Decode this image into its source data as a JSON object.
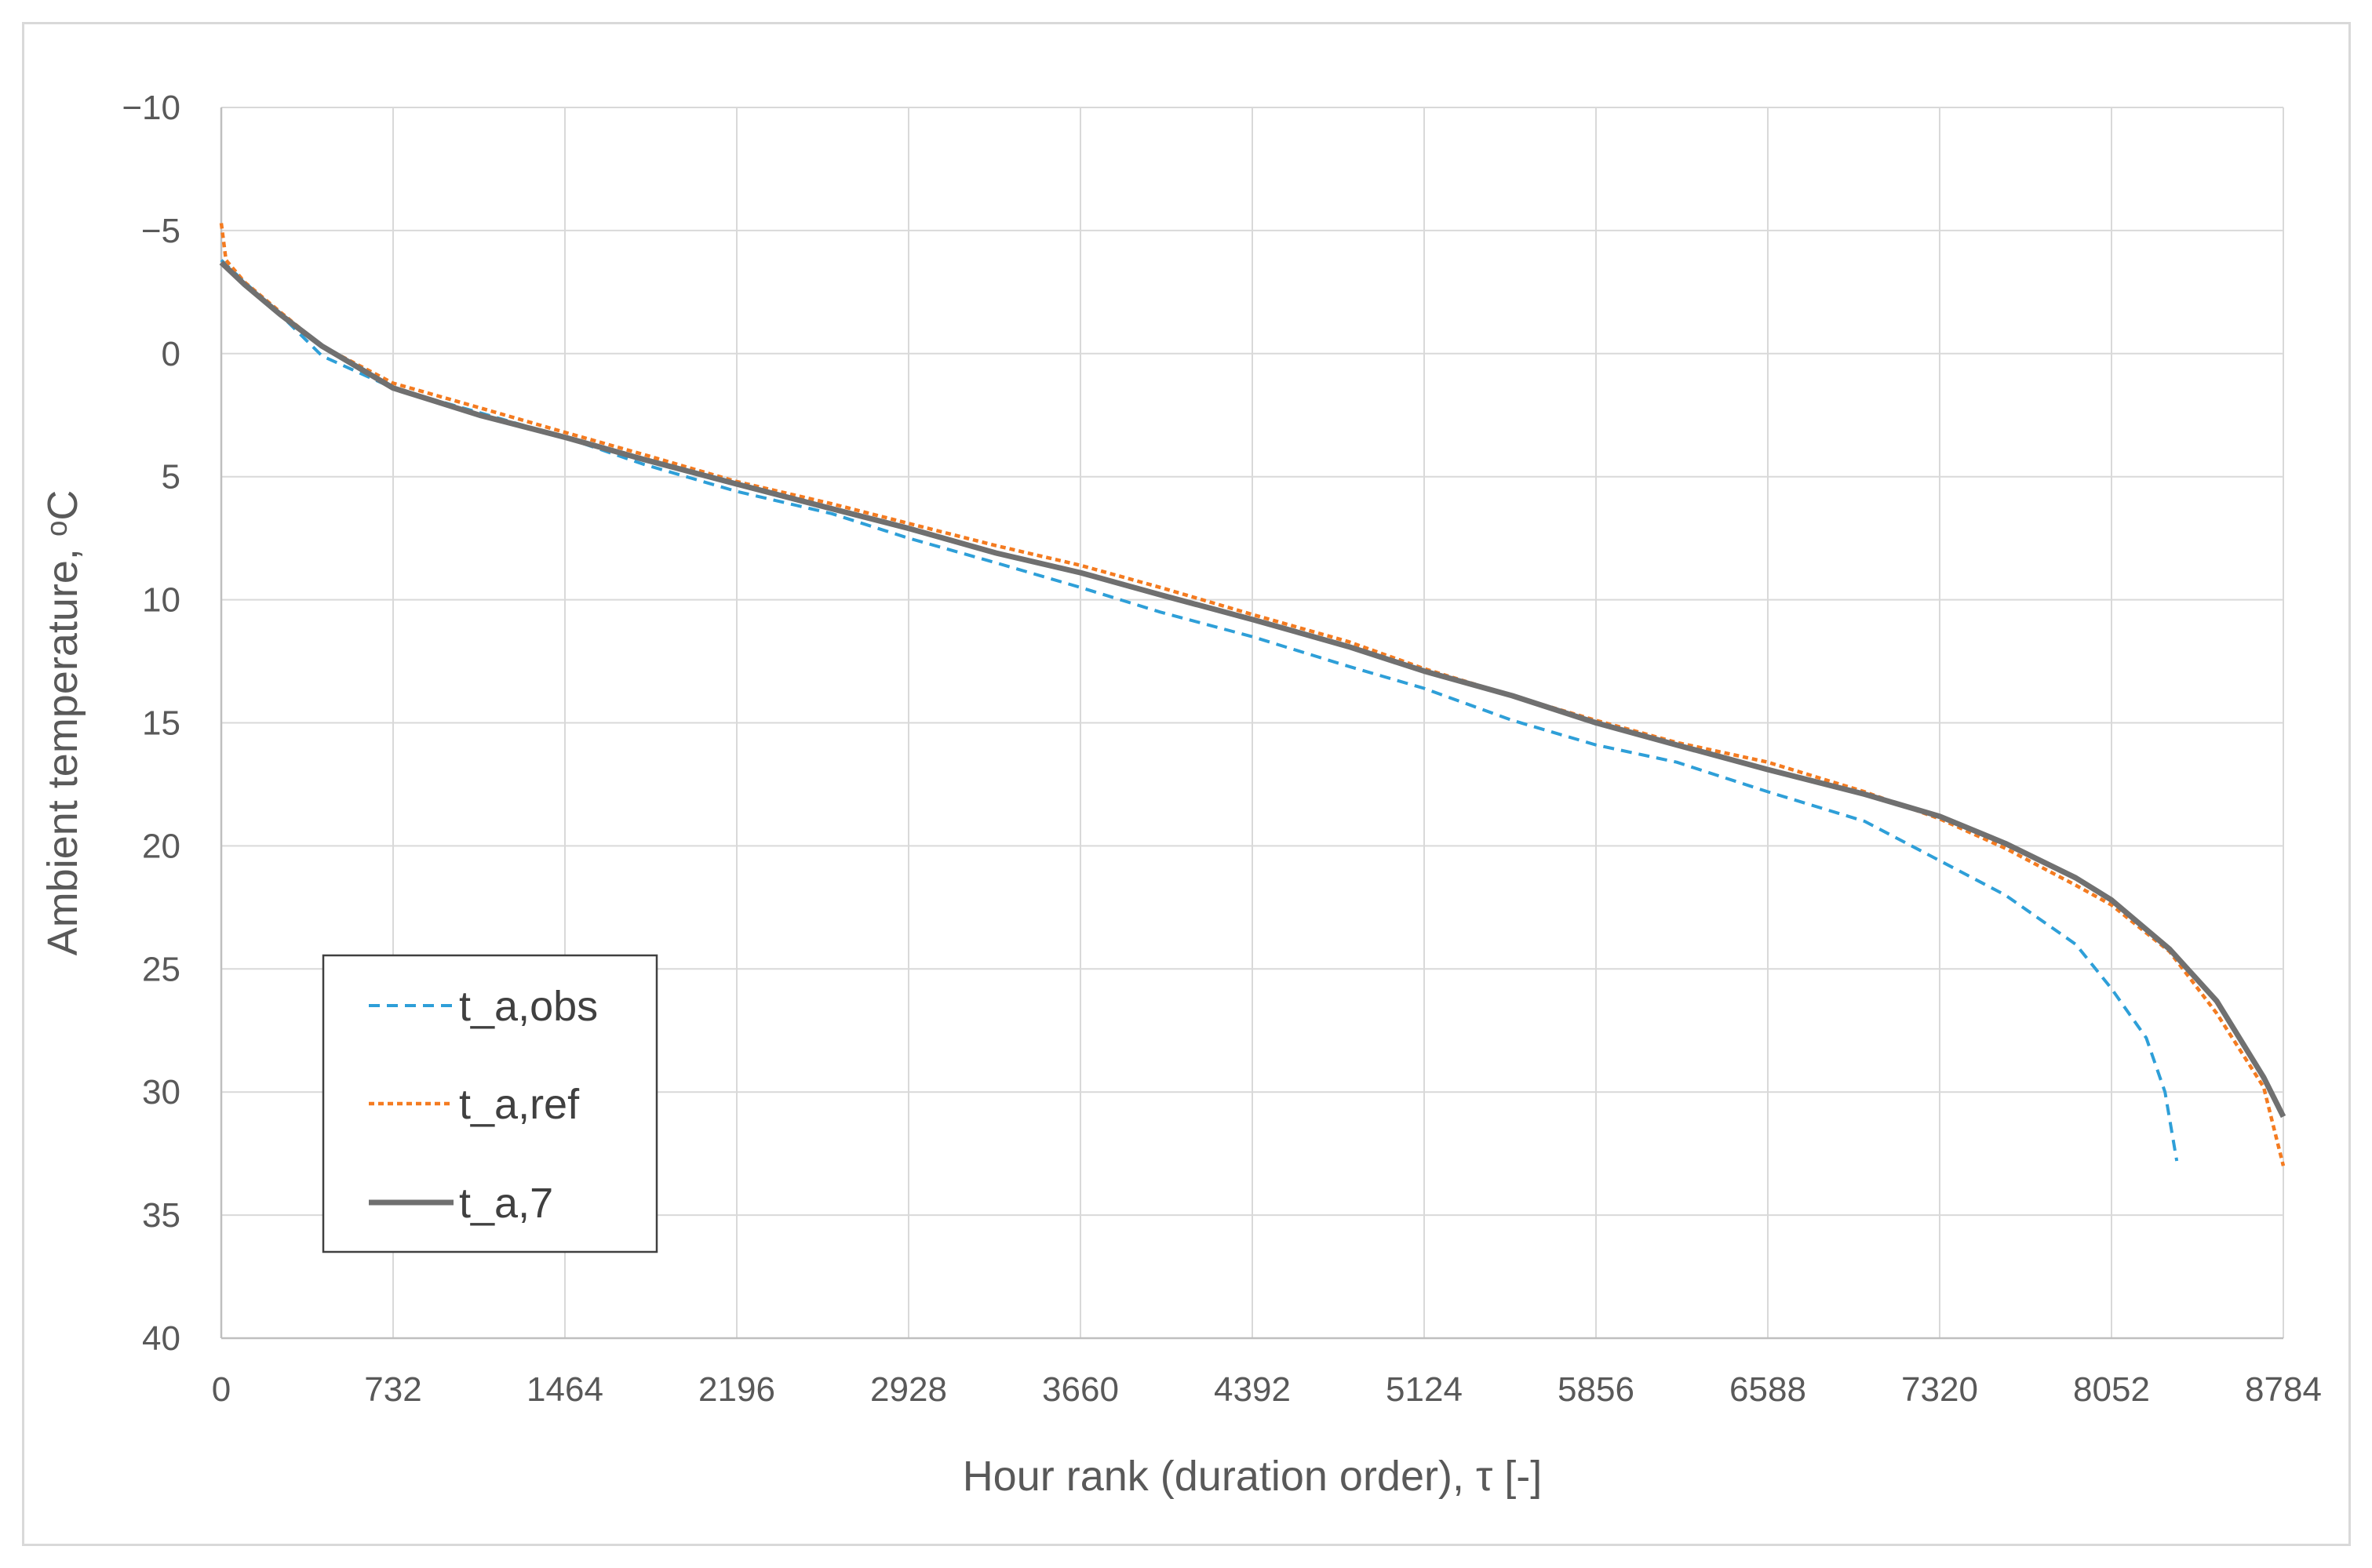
{
  "chart_data": {
    "type": "line",
    "title": "",
    "xlabel": "Hour rank (duration order), τ [-]",
    "ylabel": "Ambient temperature, ᵒC",
    "xlim": [
      0,
      8784
    ],
    "ylim": [
      -10,
      40
    ],
    "y_reversed": true,
    "grid": true,
    "legend_position": "bottom-left",
    "x_ticks": [
      "0",
      "732",
      "1464",
      "2196",
      "2928",
      "3660",
      "4392",
      "5124",
      "5856",
      "6588",
      "7320",
      "8052",
      "8784"
    ],
    "y_ticks": [
      "−10",
      "−5",
      "0",
      "5",
      "10",
      "15",
      "20",
      "25",
      "30",
      "35",
      "40"
    ],
    "series": [
      {
        "name": "t_a,obs",
        "color": "#2E9FD8",
        "style": "dashed",
        "points": [
          [
            0,
            -3.8
          ],
          [
            100,
            -2.9
          ],
          [
            250,
            -1.6
          ],
          [
            430,
            0.1
          ],
          [
            732,
            1.4
          ],
          [
            1100,
            2.4
          ],
          [
            1464,
            3.4
          ],
          [
            1800,
            4.5
          ],
          [
            2196,
            5.6
          ],
          [
            2600,
            6.5
          ],
          [
            2928,
            7.5
          ],
          [
            3300,
            8.5
          ],
          [
            3660,
            9.5
          ],
          [
            4000,
            10.5
          ],
          [
            4392,
            11.5
          ],
          [
            4800,
            12.7
          ],
          [
            5124,
            13.6
          ],
          [
            5500,
            14.9
          ],
          [
            5856,
            15.9
          ],
          [
            6200,
            16.6
          ],
          [
            6588,
            17.8
          ],
          [
            7000,
            19.0
          ],
          [
            7320,
            20.6
          ],
          [
            7600,
            22.0
          ],
          [
            7900,
            24.0
          ],
          [
            8052,
            25.8
          ],
          [
            8200,
            27.8
          ],
          [
            8280,
            30.0
          ],
          [
            8330,
            32.8
          ]
        ]
      },
      {
        "name": "t_a,ref",
        "color": "#F47B20",
        "style": "dotted",
        "points": [
          [
            0,
            -5.3
          ],
          [
            20,
            -3.8
          ],
          [
            100,
            -2.9
          ],
          [
            250,
            -1.7
          ],
          [
            430,
            -0.3
          ],
          [
            732,
            1.2
          ],
          [
            1100,
            2.2
          ],
          [
            1464,
            3.2
          ],
          [
            1800,
            4.1
          ],
          [
            2196,
            5.2
          ],
          [
            2600,
            6.1
          ],
          [
            2928,
            6.9
          ],
          [
            3300,
            7.8
          ],
          [
            3660,
            8.6
          ],
          [
            4000,
            9.5
          ],
          [
            4392,
            10.6
          ],
          [
            4800,
            11.7
          ],
          [
            5124,
            12.8
          ],
          [
            5500,
            13.9
          ],
          [
            5856,
            14.9
          ],
          [
            6200,
            15.8
          ],
          [
            6588,
            16.6
          ],
          [
            7000,
            17.8
          ],
          [
            7320,
            18.9
          ],
          [
            7600,
            20.1
          ],
          [
            7900,
            21.6
          ],
          [
            8052,
            22.4
          ],
          [
            8300,
            24.3
          ],
          [
            8500,
            26.8
          ],
          [
            8700,
            29.8
          ],
          [
            8784,
            33.0
          ]
        ]
      },
      {
        "name": "t_a,7",
        "color": "#707070",
        "style": "solid",
        "points": [
          [
            0,
            -3.7
          ],
          [
            100,
            -2.8
          ],
          [
            250,
            -1.6
          ],
          [
            430,
            -0.3
          ],
          [
            732,
            1.4
          ],
          [
            1100,
            2.5
          ],
          [
            1464,
            3.4
          ],
          [
            1800,
            4.3
          ],
          [
            2196,
            5.3
          ],
          [
            2600,
            6.3
          ],
          [
            2928,
            7.1
          ],
          [
            3300,
            8.1
          ],
          [
            3660,
            8.9
          ],
          [
            4000,
            9.8
          ],
          [
            4392,
            10.8
          ],
          [
            4800,
            11.9
          ],
          [
            5124,
            12.9
          ],
          [
            5500,
            13.9
          ],
          [
            5856,
            15.0
          ],
          [
            6200,
            15.9
          ],
          [
            6588,
            16.9
          ],
          [
            7000,
            17.9
          ],
          [
            7320,
            18.8
          ],
          [
            7600,
            19.9
          ],
          [
            7900,
            21.3
          ],
          [
            8052,
            22.2
          ],
          [
            8300,
            24.2
          ],
          [
            8500,
            26.3
          ],
          [
            8700,
            29.4
          ],
          [
            8784,
            31.0
          ]
        ]
      }
    ]
  }
}
